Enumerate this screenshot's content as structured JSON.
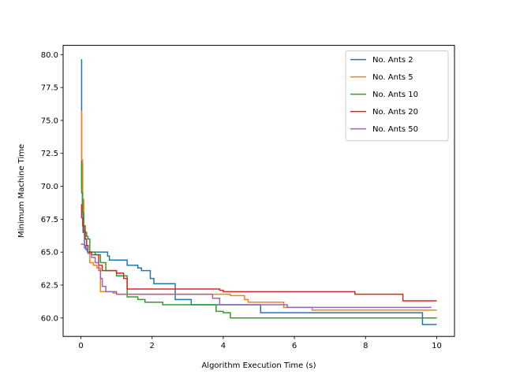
{
  "chart_data": {
    "type": "line",
    "title": "",
    "xlabel": "Algorithm Execution Time (s)",
    "ylabel": "Minimum Machine Time",
    "xlim": [
      -0.5,
      10.5
    ],
    "ylim": [
      58.6,
      80.7
    ],
    "xticks": [
      0,
      2,
      4,
      6,
      8,
      10
    ],
    "xtick_labels": [
      "0",
      "2",
      "4",
      "6",
      "8",
      "10"
    ],
    "yticks": [
      60.0,
      62.5,
      65.0,
      67.5,
      70.0,
      72.5,
      75.0,
      77.5,
      80.0
    ],
    "ytick_labels": [
      "60.0",
      "62.5",
      "65.0",
      "67.5",
      "70.0",
      "72.5",
      "75.0",
      "77.5",
      "80.0"
    ],
    "grid": false,
    "legend": "top-right",
    "series": [
      {
        "name": "No. Ants 2",
        "color": "#1f77b4",
        "x": [
          0,
          0.02,
          0.04,
          0.06,
          0.1,
          0.14,
          0.18,
          0.22,
          0.3,
          0.75,
          0.8,
          1.3,
          1.6,
          1.7,
          1.95,
          2.05,
          2.65,
          3.1,
          5.05,
          9.6,
          10
        ],
        "y": [
          79.6,
          70.0,
          68.6,
          66.5,
          65.5,
          65.2,
          65.0,
          65.0,
          65.0,
          64.7,
          64.4,
          64.0,
          63.8,
          63.6,
          63.0,
          62.6,
          61.4,
          61.0,
          60.4,
          59.5,
          59.5
        ]
      },
      {
        "name": "No. Ants 5",
        "color": "#ff7f0e",
        "x": [
          0,
          0.02,
          0.05,
          0.08,
          0.12,
          0.16,
          0.2,
          0.25,
          0.35,
          0.45,
          0.55,
          0.9,
          1.0,
          1.3,
          4.2,
          4.6,
          4.7,
          5.7,
          6.5,
          10
        ],
        "y": [
          75.7,
          72.0,
          69.0,
          67.0,
          66.0,
          65.5,
          65.0,
          64.2,
          64.0,
          63.8,
          62.0,
          61.9,
          61.8,
          61.8,
          61.7,
          61.4,
          61.2,
          60.8,
          60.6,
          60.6
        ]
      },
      {
        "name": "No. Ants 10",
        "color": "#2ca02c",
        "x": [
          0,
          0.02,
          0.05,
          0.08,
          0.12,
          0.16,
          0.2,
          0.25,
          0.4,
          0.55,
          0.7,
          1.0,
          1.3,
          1.6,
          1.8,
          2.3,
          2.7,
          3.8,
          4.0,
          4.2,
          10
        ],
        "y": [
          71.6,
          69.5,
          68.0,
          67.0,
          66.5,
          66.2,
          66.0,
          65.0,
          64.8,
          64.2,
          63.6,
          63.2,
          61.6,
          61.4,
          61.2,
          61.0,
          61.0,
          60.5,
          60.4,
          60.0,
          60.0
        ]
      },
      {
        "name": "No. Ants 20",
        "color": "#d62728",
        "x": [
          0,
          0.02,
          0.05,
          0.08,
          0.12,
          0.16,
          0.2,
          0.3,
          0.5,
          0.6,
          0.9,
          1.0,
          1.2,
          1.3,
          2.5,
          3.9,
          4.0,
          7.7,
          9.05,
          10
        ],
        "y": [
          68.6,
          67.6,
          67.0,
          66.6,
          66.0,
          65.5,
          65.0,
          64.8,
          64.0,
          63.6,
          63.6,
          63.4,
          63.0,
          62.2,
          62.2,
          62.1,
          62.0,
          61.8,
          61.3,
          61.3
        ]
      },
      {
        "name": "No. Ants 50",
        "color": "#9467bd",
        "x": [
          0,
          0.1,
          0.2,
          0.3,
          0.4,
          0.5,
          0.55,
          0.6,
          0.7,
          1.0,
          1.3,
          3.5,
          3.7,
          3.9,
          5.8,
          9.85
        ],
        "y": [
          65.6,
          65.3,
          64.9,
          64.6,
          64.2,
          63.6,
          63.0,
          62.4,
          62.0,
          61.8,
          61.8,
          61.8,
          61.5,
          61.0,
          60.8,
          60.8
        ]
      }
    ]
  }
}
